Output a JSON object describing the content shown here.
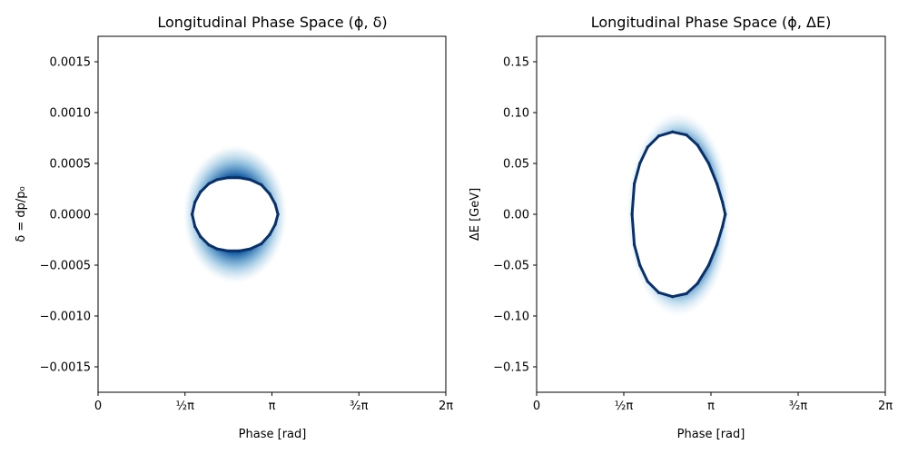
{
  "chart_data": [
    {
      "type": "scatter",
      "title": "Longitudinal Phase Space (ϕ, δ)",
      "xlabel": "Phase [rad]",
      "ylabel": "δ = dp/p₀",
      "xlim": [
        0,
        6.2832
      ],
      "ylim": [
        -0.00175,
        0.00175
      ],
      "x_ticks": [
        {
          "value": 0,
          "label": "0"
        },
        {
          "value": 1.5708,
          "label": "½π"
        },
        {
          "value": 3.1416,
          "label": "π"
        },
        {
          "value": 4.7124,
          "label": "³⁄₂π"
        },
        {
          "value": 6.2832,
          "label": "2π"
        }
      ],
      "y_ticks": [
        {
          "value": 0.0015,
          "label": "0.0015"
        },
        {
          "value": 0.001,
          "label": "0.0010"
        },
        {
          "value": 0.0005,
          "label": "0.0005"
        },
        {
          "value": 0,
          "label": "0.0000"
        },
        {
          "value": -0.0005,
          "label": "−0.0005"
        },
        {
          "value": -0.001,
          "label": "−0.0010"
        },
        {
          "value": -0.0015,
          "label": "−0.0015"
        }
      ],
      "grid": false,
      "legend": "none",
      "color": "#08306b",
      "series": [
        {
          "x": [
            1.7,
            1.75,
            1.85,
            2.0,
            2.15,
            2.35,
            2.55,
            2.75,
            2.95,
            3.1,
            3.2,
            3.25,
            3.2,
            3.1,
            2.95,
            2.75,
            2.55,
            2.35,
            2.15,
            2.0,
            1.85,
            1.75,
            1.7
          ],
          "y": [
            0.0,
            0.00012,
            0.00022,
            0.0003,
            0.00034,
            0.00036,
            0.00036,
            0.00034,
            0.00029,
            0.0002,
            0.0001,
            0.0,
            -0.0001,
            -0.0002,
            -0.00029,
            -0.00034,
            -0.00036,
            -0.00036,
            -0.00034,
            -0.0003,
            -0.00022,
            -0.00012,
            0.0
          ]
        }
      ]
    },
    {
      "type": "scatter",
      "title": "Longitudinal Phase Space (ϕ, ΔE)",
      "xlabel": "Phase [rad]",
      "ylabel": "ΔE [GeV]",
      "xlim": [
        0,
        6.2832
      ],
      "ylim": [
        -0.175,
        0.175
      ],
      "x_ticks": [
        {
          "value": 0,
          "label": "0"
        },
        {
          "value": 1.5708,
          "label": "½π"
        },
        {
          "value": 3.1416,
          "label": "π"
        },
        {
          "value": 4.7124,
          "label": "³⁄₂π"
        },
        {
          "value": 6.2832,
          "label": "2π"
        }
      ],
      "y_ticks": [
        {
          "value": 0.15,
          "label": "0.15"
        },
        {
          "value": 0.1,
          "label": "0.10"
        },
        {
          "value": 0.05,
          "label": "0.05"
        },
        {
          "value": 0,
          "label": "0.00"
        },
        {
          "value": -0.05,
          "label": "−0.05"
        },
        {
          "value": -0.1,
          "label": "−0.10"
        },
        {
          "value": -0.15,
          "label": "−0.15"
        }
      ],
      "grid": false,
      "legend": "none",
      "color": "#08306b",
      "series": [
        {
          "x": [
            1.72,
            1.76,
            1.86,
            2.0,
            2.2,
            2.45,
            2.7,
            2.9,
            3.1,
            3.25,
            3.35,
            3.4,
            3.35,
            3.25,
            3.1,
            2.9,
            2.7,
            2.45,
            2.2,
            2.0,
            1.86,
            1.76,
            1.72
          ],
          "y": [
            0.0,
            0.03,
            0.05,
            0.066,
            0.077,
            0.081,
            0.078,
            0.068,
            0.05,
            0.03,
            0.012,
            0.0,
            -0.012,
            -0.03,
            -0.05,
            -0.068,
            -0.078,
            -0.081,
            -0.077,
            -0.066,
            -0.05,
            -0.03,
            0.0
          ]
        }
      ]
    }
  ]
}
